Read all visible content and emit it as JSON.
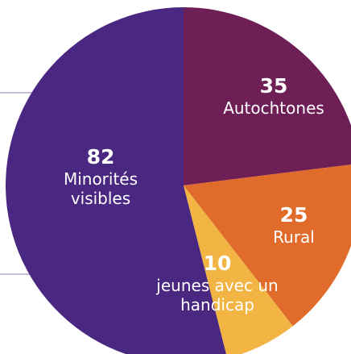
{
  "chart_data": {
    "type": "pie",
    "categories": [
      "Autochtones",
      "Rural",
      "jeunes avec un handicap",
      "Minorités visibles"
    ],
    "values": [
      35,
      25,
      10,
      82
    ],
    "colors": [
      "#6d1f56",
      "#e06b2b",
      "#f2b544",
      "#4a2780"
    ]
  }
}
